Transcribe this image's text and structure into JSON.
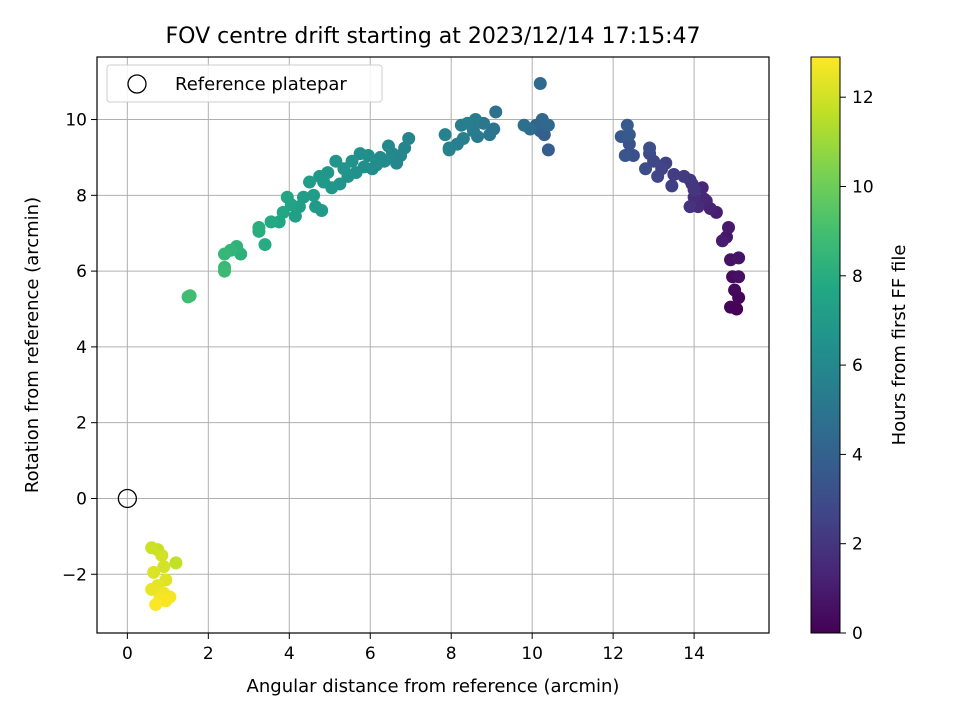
{
  "chart_data": {
    "type": "scatter",
    "title": "FOV centre drift starting at 2023/12/14 17:15:47",
    "xlabel": "Angular distance from reference (arcmin)",
    "ylabel": "Rotation from reference (arcmin)",
    "xlim": [
      -0.75,
      15.85
    ],
    "ylim": [
      -3.55,
      11.65
    ],
    "xticks": [
      0,
      2,
      4,
      6,
      8,
      10,
      12,
      14
    ],
    "yticks": [
      -2,
      0,
      2,
      4,
      6,
      8,
      10
    ],
    "grid": true,
    "legend": {
      "position": "top-left",
      "entries": [
        "Reference platepar"
      ]
    },
    "reference_point": {
      "name": "Reference platepar",
      "x": 0,
      "y": 0
    },
    "colorbar": {
      "label": "Hours from first FF file",
      "range": [
        0,
        12.9
      ],
      "ticks": [
        0,
        2,
        4,
        6,
        8,
        10,
        12
      ],
      "colormap": "viridis"
    },
    "series": [
      {
        "color_by": "hours",
        "points": [
          [
            15.05,
            5.0,
            0.0
          ],
          [
            14.9,
            5.05,
            0.1
          ],
          [
            15.1,
            5.3,
            0.2
          ],
          [
            15.0,
            5.5,
            0.3
          ],
          [
            14.95,
            5.85,
            0.4
          ],
          [
            15.1,
            5.85,
            0.5
          ],
          [
            14.9,
            6.3,
            0.6
          ],
          [
            15.1,
            6.35,
            0.7
          ],
          [
            14.8,
            6.9,
            0.8
          ],
          [
            14.85,
            7.15,
            0.9
          ],
          [
            14.7,
            6.8,
            1.0
          ],
          [
            14.55,
            7.55,
            1.1
          ],
          [
            14.4,
            7.65,
            1.2
          ],
          [
            14.3,
            7.85,
            1.3
          ],
          [
            14.25,
            7.9,
            1.4
          ],
          [
            14.2,
            8.2,
            1.5
          ],
          [
            14.1,
            7.7,
            1.6
          ],
          [
            14.0,
            7.95,
            1.7
          ],
          [
            13.95,
            8.3,
            1.8
          ],
          [
            13.9,
            7.7,
            1.9
          ],
          [
            14.0,
            8.15,
            2.0
          ],
          [
            13.9,
            8.4,
            2.1
          ],
          [
            13.75,
            8.5,
            2.2
          ],
          [
            13.5,
            8.55,
            2.3
          ],
          [
            13.45,
            8.25,
            2.4
          ],
          [
            13.3,
            8.85,
            2.5
          ],
          [
            13.2,
            8.7,
            2.6
          ],
          [
            13.1,
            8.5,
            2.7
          ],
          [
            13.0,
            8.9,
            2.8
          ],
          [
            12.9,
            9.1,
            2.9
          ],
          [
            12.8,
            8.7,
            3.0
          ],
          [
            12.9,
            9.25,
            3.1
          ],
          [
            12.5,
            9.05,
            3.2
          ],
          [
            12.4,
            9.35,
            3.3
          ],
          [
            12.3,
            9.05,
            3.4
          ],
          [
            12.2,
            9.55,
            3.5
          ],
          [
            12.4,
            9.6,
            3.6
          ],
          [
            12.35,
            9.85,
            3.7
          ],
          [
            10.4,
            9.2,
            3.8
          ],
          [
            10.3,
            9.6,
            3.9
          ],
          [
            10.2,
            9.7,
            4.0
          ],
          [
            10.1,
            9.85,
            4.2
          ],
          [
            10.25,
            10.0,
            4.3
          ],
          [
            10.4,
            9.85,
            4.4
          ],
          [
            10.2,
            10.95,
            4.5
          ],
          [
            9.95,
            9.75,
            4.6
          ],
          [
            9.8,
            9.85,
            4.7
          ],
          [
            9.1,
            10.2,
            4.8
          ],
          [
            9.05,
            9.75,
            4.9
          ],
          [
            8.95,
            9.6,
            5.0
          ],
          [
            8.8,
            9.9,
            5.1
          ],
          [
            8.65,
            9.55,
            5.2
          ],
          [
            8.55,
            9.7,
            5.3
          ],
          [
            8.6,
            10.0,
            5.35
          ],
          [
            8.4,
            9.9,
            5.4
          ],
          [
            8.25,
            9.85,
            5.45
          ],
          [
            8.3,
            9.5,
            5.5
          ],
          [
            8.15,
            9.35,
            5.55
          ],
          [
            7.95,
            9.25,
            5.6
          ],
          [
            7.85,
            9.6,
            5.7
          ],
          [
            7.95,
            9.2,
            5.75
          ],
          [
            6.95,
            9.5,
            5.8
          ],
          [
            6.85,
            9.25,
            5.85
          ],
          [
            6.75,
            9.05,
            5.9
          ],
          [
            6.65,
            8.85,
            5.95
          ],
          [
            6.55,
            9.1,
            6.0
          ],
          [
            6.45,
            9.3,
            6.05
          ],
          [
            6.35,
            8.9,
            6.1
          ],
          [
            6.25,
            9.0,
            6.15
          ],
          [
            6.15,
            8.8,
            6.2
          ],
          [
            6.05,
            8.7,
            6.25
          ],
          [
            5.95,
            9.05,
            6.3
          ],
          [
            5.85,
            8.75,
            6.35
          ],
          [
            5.75,
            9.1,
            6.4
          ],
          [
            5.65,
            8.6,
            6.45
          ],
          [
            5.55,
            8.9,
            6.5
          ],
          [
            5.45,
            8.5,
            6.55
          ],
          [
            5.35,
            8.7,
            6.6
          ],
          [
            5.25,
            8.3,
            6.65
          ],
          [
            5.15,
            8.9,
            6.7
          ],
          [
            5.05,
            8.2,
            6.75
          ],
          [
            4.95,
            8.6,
            6.8
          ],
          [
            4.85,
            8.35,
            6.85
          ],
          [
            4.75,
            8.5,
            6.9
          ],
          [
            4.8,
            7.6,
            6.95
          ],
          [
            4.65,
            7.7,
            7.0
          ],
          [
            4.6,
            8.0,
            7.05
          ],
          [
            4.5,
            8.35,
            7.1
          ],
          [
            4.35,
            7.95,
            7.15
          ],
          [
            4.25,
            7.7,
            7.2
          ],
          [
            4.15,
            7.45,
            7.3
          ],
          [
            4.05,
            7.75,
            7.4
          ],
          [
            3.95,
            7.95,
            7.5
          ],
          [
            3.85,
            7.55,
            7.6
          ],
          [
            3.75,
            7.3,
            7.7
          ],
          [
            3.55,
            7.3,
            7.8
          ],
          [
            3.4,
            6.7,
            7.9
          ],
          [
            3.25,
            7.05,
            8.0
          ],
          [
            3.25,
            7.15,
            8.1
          ],
          [
            2.8,
            6.45,
            8.2
          ],
          [
            2.7,
            6.65,
            8.3
          ],
          [
            2.55,
            6.55,
            8.4
          ],
          [
            2.4,
            6.45,
            8.5
          ],
          [
            2.4,
            6.1,
            8.6
          ],
          [
            2.4,
            6.0,
            8.7
          ],
          [
            1.5,
            5.32,
            8.8
          ],
          [
            1.55,
            5.35,
            8.9
          ],
          [
            1.2,
            -1.7,
            11.7
          ],
          [
            0.75,
            -1.35,
            11.8
          ],
          [
            0.6,
            -1.3,
            11.9
          ],
          [
            0.85,
            -1.5,
            12.0
          ],
          [
            0.9,
            -1.8,
            12.1
          ],
          [
            0.65,
            -1.95,
            12.2
          ],
          [
            0.95,
            -2.15,
            12.3
          ],
          [
            0.75,
            -2.3,
            12.4
          ],
          [
            0.6,
            -2.4,
            12.5
          ],
          [
            0.9,
            -2.5,
            12.6
          ],
          [
            1.05,
            -2.6,
            12.7
          ],
          [
            0.8,
            -2.65,
            12.75
          ],
          [
            0.95,
            -2.7,
            12.8
          ],
          [
            0.7,
            -2.8,
            12.85
          ]
        ]
      }
    ]
  }
}
